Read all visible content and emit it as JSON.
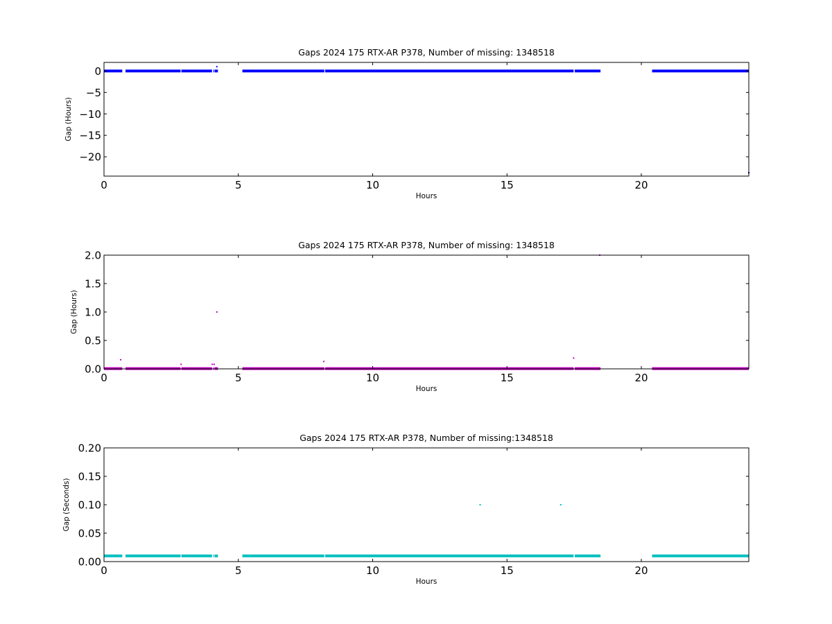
{
  "chart_data": [
    {
      "type": "scatter",
      "title": "Gaps 2024 175 RTX-AR  P378, Number of missing: 1348518",
      "xlabel": "Hours",
      "ylabel": "Gap (Hours)",
      "xlim": [
        0,
        24
      ],
      "ylim": [
        -24.5,
        2
      ],
      "xticks": [
        0,
        5,
        10,
        15,
        20
      ],
      "yticks": [
        0,
        -5,
        -10,
        -15,
        -20
      ],
      "ytick_labels": [
        "0",
        "−5",
        "−10",
        "−15",
        "−20"
      ],
      "grid": false,
      "color": "#0000ff",
      "segments": [
        [
          0.0,
          0.68
        ],
        [
          0.8,
          2.85
        ],
        [
          2.88,
          4.02
        ],
        [
          4.07,
          4.1
        ],
        [
          4.12,
          4.24
        ],
        [
          5.15,
          8.2
        ],
        [
          8.23,
          17.48
        ],
        [
          17.52,
          18.48
        ],
        [
          20.4,
          24.0
        ]
      ],
      "segment_y": 0,
      "points": [
        {
          "x": 4.2,
          "y": 1.0
        },
        {
          "x": 24.0,
          "y": -23.7
        }
      ]
    },
    {
      "type": "scatter",
      "title": "Gaps 2024 175 RTX-AR  P378, Number of missing: 1348518",
      "xlabel": "Hours",
      "ylabel": "Gap (Hours)",
      "xlim": [
        0,
        24
      ],
      "ylim": [
        0,
        2.0
      ],
      "xticks": [
        0,
        5,
        10,
        15,
        20
      ],
      "yticks": [
        0.0,
        0.5,
        1.0,
        1.5,
        2.0
      ],
      "ytick_labels": [
        "0.0",
        "0.5",
        "1.0",
        "1.5",
        "2.0"
      ],
      "grid": false,
      "color": "#bf00bf",
      "segments": [
        [
          0.0,
          0.68
        ],
        [
          0.8,
          2.85
        ],
        [
          2.88,
          4.02
        ],
        [
          4.07,
          4.1
        ],
        [
          4.12,
          4.24
        ],
        [
          5.15,
          8.2
        ],
        [
          8.23,
          17.48
        ],
        [
          17.52,
          18.48
        ],
        [
          20.4,
          24.0
        ]
      ],
      "segment_y": 0.005,
      "points": [
        {
          "x": 0.62,
          "y": 0.16
        },
        {
          "x": 2.87,
          "y": 0.08
        },
        {
          "x": 4.03,
          "y": 0.08
        },
        {
          "x": 4.1,
          "y": 0.08
        },
        {
          "x": 4.2,
          "y": 1.0
        },
        {
          "x": 8.18,
          "y": 0.13
        },
        {
          "x": 17.48,
          "y": 0.19
        },
        {
          "x": 18.45,
          "y": 2.0
        }
      ]
    },
    {
      "type": "scatter",
      "title": "Gaps 2024 175 RTX-AR  P378, Number of missing:1348518",
      "xlabel": "Hours",
      "ylabel": "Gap (Seconds)",
      "xlim": [
        0,
        24
      ],
      "ylim": [
        0,
        0.2
      ],
      "xticks": [
        0,
        5,
        10,
        15,
        20
      ],
      "yticks": [
        0.0,
        0.05,
        0.1,
        0.15,
        0.2
      ],
      "ytick_labels": [
        "0.00",
        "0.05",
        "0.10",
        "0.15",
        "0.20"
      ],
      "grid": false,
      "color": "#00bfbf",
      "segments": [
        [
          0.0,
          0.68
        ],
        [
          0.8,
          2.85
        ],
        [
          2.88,
          4.02
        ],
        [
          4.07,
          4.1
        ],
        [
          4.12,
          4.24
        ],
        [
          5.15,
          8.2
        ],
        [
          8.23,
          17.48
        ],
        [
          17.52,
          18.48
        ],
        [
          20.4,
          24.0
        ]
      ],
      "segment_y": 0.01,
      "points": [
        {
          "x": 14.0,
          "y": 0.1
        },
        {
          "x": 17.0,
          "y": 0.1
        }
      ]
    }
  ]
}
